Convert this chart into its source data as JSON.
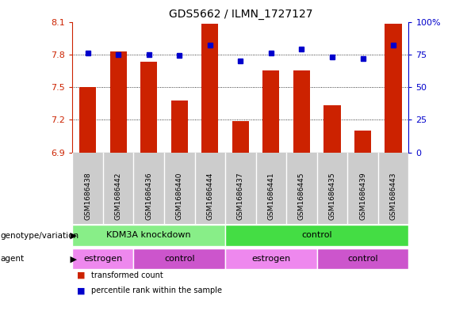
{
  "title": "GDS5662 / ILMN_1727127",
  "samples": [
    "GSM1686438",
    "GSM1686442",
    "GSM1686436",
    "GSM1686440",
    "GSM1686444",
    "GSM1686437",
    "GSM1686441",
    "GSM1686445",
    "GSM1686435",
    "GSM1686439",
    "GSM1686443"
  ],
  "bar_values": [
    7.5,
    7.83,
    7.73,
    7.38,
    8.08,
    7.19,
    7.65,
    7.65,
    7.33,
    7.1,
    8.08
  ],
  "percentile_values": [
    76,
    75,
    75,
    74,
    82,
    70,
    76,
    79,
    73,
    72,
    82
  ],
  "ylim_left": [
    6.9,
    8.1
  ],
  "ylim_right": [
    0,
    100
  ],
  "yticks_left": [
    6.9,
    7.2,
    7.5,
    7.8,
    8.1
  ],
  "yticks_right": [
    0,
    25,
    50,
    75,
    100
  ],
  "ytick_labels_left": [
    "6.9",
    "7.2",
    "7.5",
    "7.8",
    "8.1"
  ],
  "ytick_labels_right": [
    "0",
    "25",
    "50",
    "75",
    "100%"
  ],
  "bar_color": "#cc2200",
  "percentile_color": "#0000cc",
  "bar_width": 0.55,
  "genotype_groups": [
    {
      "label": "KDM3A knockdown",
      "start": 0,
      "end": 5,
      "color": "#88ee88"
    },
    {
      "label": "control",
      "start": 5,
      "end": 11,
      "color": "#44dd44"
    }
  ],
  "agent_groups": [
    {
      "label": "estrogen",
      "start": 0,
      "end": 2,
      "color": "#ee88ee"
    },
    {
      "label": "control",
      "start": 2,
      "end": 5,
      "color": "#cc55cc"
    },
    {
      "label": "estrogen",
      "start": 5,
      "end": 8,
      "color": "#ee88ee"
    },
    {
      "label": "control",
      "start": 8,
      "end": 11,
      "color": "#cc55cc"
    }
  ],
  "legend_items": [
    {
      "label": "transformed count",
      "color": "#cc2200"
    },
    {
      "label": "percentile rank within the sample",
      "color": "#0000cc"
    }
  ],
  "genotype_label": "genotype/variation",
  "agent_label": "agent",
  "sample_bg_color": "#cccccc",
  "sample_border_color": "#ffffff"
}
